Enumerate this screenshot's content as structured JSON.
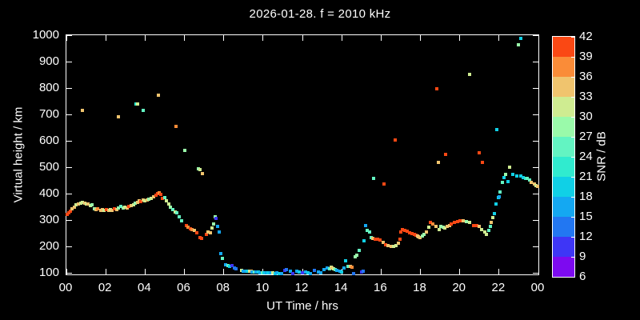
{
  "title": "2026-01-28. f = 2010 kHz",
  "axes": {
    "x": {
      "label": "UT Time / hrs",
      "tick_values": [
        0,
        2,
        4,
        6,
        8,
        10,
        12,
        14,
        16,
        18,
        20,
        22,
        24
      ],
      "tick_labels": [
        "00",
        "02",
        "04",
        "06",
        "08",
        "10",
        "12",
        "14",
        "16",
        "18",
        "20",
        "22",
        "00"
      ],
      "min": 0,
      "max": 24
    },
    "y": {
      "label": "Virtual height / km",
      "tick_values": [
        100,
        200,
        300,
        400,
        500,
        600,
        700,
        800,
        900,
        1000
      ],
      "min": 91,
      "max": 1003
    }
  },
  "colorbar": {
    "label": "SNR / dB",
    "tick_values": [
      6,
      9,
      12,
      15,
      18,
      21,
      24,
      27,
      30,
      33,
      36,
      39,
      42
    ],
    "min": 6,
    "max": 42,
    "palette_low_to_high": [
      "#7d0af0",
      "#3e36f6",
      "#2277f2",
      "#14a8f2",
      "#10d0e6",
      "#30ebcf",
      "#63f4c2",
      "#9afaaa",
      "#cfec91",
      "#f0c46e",
      "#fa8c38",
      "#fa4814",
      "#f50400"
    ]
  },
  "chart_data": {
    "type": "scatter",
    "title": "2026-01-28. f = 2010 kHz",
    "xlabel": "UT Time / hrs",
    "ylabel": "Virtual height / km",
    "color_label": "SNR / dB",
    "xlim": [
      0,
      24
    ],
    "ylim": [
      91,
      1003
    ],
    "color_lim": [
      6,
      42
    ],
    "grid": false,
    "legend": "colorbar-right",
    "points_t_km_snr": [
      [
        0.05,
        320,
        40
      ],
      [
        0.12,
        327,
        40
      ],
      [
        0.2,
        334,
        40
      ],
      [
        0.3,
        342,
        34
      ],
      [
        0.4,
        348,
        34
      ],
      [
        0.5,
        358,
        31
      ],
      [
        0.62,
        361,
        34
      ],
      [
        0.72,
        364,
        31
      ],
      [
        0.83,
        715,
        34
      ],
      [
        0.83,
        367,
        31
      ],
      [
        0.92,
        364,
        34
      ],
      [
        1.0,
        361,
        31
      ],
      [
        1.1,
        361,
        34
      ],
      [
        1.2,
        355,
        31
      ],
      [
        1.3,
        358,
        28
      ],
      [
        1.42,
        342,
        28
      ],
      [
        1.5,
        339,
        34
      ],
      [
        1.6,
        342,
        37
      ],
      [
        1.73,
        336,
        34
      ],
      [
        1.82,
        339,
        34
      ],
      [
        1.92,
        336,
        31
      ],
      [
        2.04,
        339,
        40
      ],
      [
        2.14,
        336,
        34
      ],
      [
        2.24,
        339,
        31
      ],
      [
        2.33,
        336,
        34
      ],
      [
        2.44,
        342,
        40
      ],
      [
        2.55,
        339,
        34
      ],
      [
        2.64,
        345,
        28
      ],
      [
        2.65,
        690,
        34
      ],
      [
        2.77,
        352,
        25
      ],
      [
        2.88,
        345,
        28
      ],
      [
        2.98,
        348,
        31
      ],
      [
        3.1,
        345,
        34
      ],
      [
        3.18,
        352,
        40
      ],
      [
        3.3,
        355,
        34
      ],
      [
        3.42,
        358,
        31
      ],
      [
        3.5,
        364,
        28
      ],
      [
        3.55,
        740,
        22
      ],
      [
        3.6,
        367,
        34
      ],
      [
        3.63,
        738,
        31
      ],
      [
        3.72,
        373,
        34
      ],
      [
        3.8,
        370,
        40
      ],
      [
        3.9,
        715,
        25
      ],
      [
        3.9,
        376,
        34
      ],
      [
        4.0,
        373,
        31
      ],
      [
        4.1,
        376,
        34
      ],
      [
        4.2,
        379,
        28
      ],
      [
        4.3,
        382,
        31
      ],
      [
        4.45,
        388,
        34
      ],
      [
        4.55,
        394,
        40
      ],
      [
        4.62,
        400,
        40
      ],
      [
        4.68,
        773,
        34
      ],
      [
        4.72,
        403,
        37
      ],
      [
        4.8,
        397,
        40
      ],
      [
        4.88,
        382,
        40
      ],
      [
        5.0,
        385,
        25
      ],
      [
        5.1,
        373,
        31
      ],
      [
        5.2,
        361,
        31
      ],
      [
        5.3,
        348,
        28
      ],
      [
        5.42,
        339,
        25
      ],
      [
        5.55,
        330,
        31
      ],
      [
        5.58,
        655,
        37
      ],
      [
        5.62,
        327,
        25
      ],
      [
        5.74,
        313,
        25
      ],
      [
        5.86,
        297,
        25
      ],
      [
        6.0,
        565,
        28
      ],
      [
        6.1,
        278,
        40
      ],
      [
        6.2,
        272,
        37
      ],
      [
        6.3,
        266,
        40
      ],
      [
        6.4,
        263,
        37
      ],
      [
        6.5,
        260,
        34
      ],
      [
        6.62,
        252,
        40
      ],
      [
        6.73,
        495,
        28
      ],
      [
        6.78,
        233,
        40
      ],
      [
        6.8,
        490,
        31
      ],
      [
        6.88,
        230,
        40
      ],
      [
        6.9,
        477,
        34
      ],
      [
        7.1,
        246,
        40
      ],
      [
        7.2,
        255,
        34
      ],
      [
        7.32,
        252,
        34
      ],
      [
        7.42,
        270,
        31
      ],
      [
        7.48,
        285,
        28
      ],
      [
        7.55,
        313,
        28
      ],
      [
        7.62,
        306,
        11
      ],
      [
        7.7,
        276,
        17
      ],
      [
        7.76,
        255,
        17
      ],
      [
        7.85,
        172,
        17
      ],
      [
        7.95,
        155,
        25
      ],
      [
        8.1,
        131,
        17
      ],
      [
        8.2,
        127,
        25
      ],
      [
        8.28,
        124,
        20
      ],
      [
        8.4,
        127,
        11
      ],
      [
        8.55,
        118,
        14
      ],
      [
        8.63,
        115,
        14
      ],
      [
        8.9,
        109,
        31
      ],
      [
        9.0,
        106,
        17
      ],
      [
        9.1,
        106,
        17
      ],
      [
        9.2,
        106,
        20
      ],
      [
        9.3,
        106,
        31
      ],
      [
        9.38,
        106,
        34
      ],
      [
        9.45,
        103,
        17
      ],
      [
        9.55,
        103,
        25
      ],
      [
        9.65,
        103,
        17
      ],
      [
        9.76,
        103,
        20
      ],
      [
        9.85,
        101,
        17
      ],
      [
        9.95,
        101,
        25
      ],
      [
        10.05,
        101,
        20
      ],
      [
        10.15,
        101,
        17
      ],
      [
        10.25,
        100,
        20
      ],
      [
        10.37,
        100,
        17
      ],
      [
        10.5,
        100,
        31
      ],
      [
        10.6,
        98,
        20
      ],
      [
        10.7,
        100,
        17
      ],
      [
        10.82,
        97,
        20
      ],
      [
        10.95,
        97,
        17
      ],
      [
        11.1,
        109,
        11
      ],
      [
        11.2,
        112,
        14
      ],
      [
        11.38,
        106,
        17
      ],
      [
        11.5,
        97,
        11
      ],
      [
        11.7,
        106,
        17
      ],
      [
        11.85,
        103,
        20
      ],
      [
        12.0,
        100,
        11
      ],
      [
        12.18,
        103,
        17
      ],
      [
        12.3,
        100,
        20
      ],
      [
        12.42,
        97,
        17
      ],
      [
        12.6,
        109,
        14
      ],
      [
        12.8,
        103,
        17
      ],
      [
        12.95,
        100,
        17
      ],
      [
        13.1,
        112,
        17
      ],
      [
        13.28,
        118,
        17
      ],
      [
        13.37,
        115,
        25
      ],
      [
        13.45,
        121,
        31
      ],
      [
        13.52,
        118,
        34
      ],
      [
        13.58,
        115,
        31
      ],
      [
        13.65,
        112,
        25
      ],
      [
        13.75,
        109,
        17
      ],
      [
        13.9,
        106,
        17
      ],
      [
        14.0,
        103,
        20
      ],
      [
        14.1,
        118,
        17
      ],
      [
        14.2,
        146,
        20
      ],
      [
        14.32,
        124,
        25
      ],
      [
        14.45,
        124,
        34
      ],
      [
        14.52,
        121,
        37
      ],
      [
        14.6,
        97,
        14
      ],
      [
        14.7,
        161,
        28
      ],
      [
        14.78,
        167,
        28
      ],
      [
        14.9,
        185,
        25
      ],
      [
        15.0,
        103,
        11
      ],
      [
        15.1,
        106,
        14
      ],
      [
        15.15,
        222,
        20
      ],
      [
        15.2,
        280,
        17
      ],
      [
        15.3,
        261,
        25
      ],
      [
        15.4,
        255,
        25
      ],
      [
        15.48,
        233,
        25
      ],
      [
        15.58,
        230,
        34
      ],
      [
        15.6,
        458,
        25
      ],
      [
        15.7,
        227,
        40
      ],
      [
        15.82,
        227,
        40
      ],
      [
        15.95,
        224,
        40
      ],
      [
        16.1,
        215,
        34
      ],
      [
        16.15,
        436,
        40
      ],
      [
        16.22,
        206,
        40
      ],
      [
        16.36,
        203,
        34
      ],
      [
        16.5,
        200,
        34
      ],
      [
        16.63,
        200,
        31
      ],
      [
        16.72,
        603,
        40
      ],
      [
        16.77,
        203,
        31
      ],
      [
        16.9,
        212,
        34
      ],
      [
        16.95,
        227,
        40
      ],
      [
        17.02,
        255,
        40
      ],
      [
        17.1,
        264,
        40
      ],
      [
        17.22,
        261,
        40
      ],
      [
        17.33,
        258,
        40
      ],
      [
        17.45,
        252,
        40
      ],
      [
        17.58,
        249,
        40
      ],
      [
        17.68,
        246,
        40
      ],
      [
        17.76,
        243,
        40
      ],
      [
        17.84,
        240,
        34
      ],
      [
        17.9,
        237,
        34
      ],
      [
        17.97,
        233,
        34
      ],
      [
        18.1,
        240,
        28
      ],
      [
        18.2,
        246,
        28
      ],
      [
        18.3,
        255,
        34
      ],
      [
        18.42,
        273,
        31
      ],
      [
        18.52,
        291,
        40
      ],
      [
        18.65,
        285,
        37
      ],
      [
        18.78,
        276,
        34
      ],
      [
        18.83,
        797,
        40
      ],
      [
        18.9,
        519,
        34
      ],
      [
        18.95,
        264,
        31
      ],
      [
        19.05,
        276,
        28
      ],
      [
        19.17,
        273,
        28
      ],
      [
        19.25,
        270,
        31
      ],
      [
        19.3,
        548,
        40
      ],
      [
        19.37,
        276,
        34
      ],
      [
        19.48,
        279,
        34
      ],
      [
        19.57,
        285,
        40
      ],
      [
        19.72,
        291,
        40
      ],
      [
        19.9,
        294,
        40
      ],
      [
        20.03,
        297,
        40
      ],
      [
        20.17,
        297,
        34
      ],
      [
        20.32,
        294,
        28
      ],
      [
        20.5,
        851,
        31
      ],
      [
        20.5,
        291,
        31
      ],
      [
        20.72,
        279,
        40
      ],
      [
        20.85,
        279,
        40
      ],
      [
        21.0,
        554,
        40
      ],
      [
        21.0,
        276,
        34
      ],
      [
        21.12,
        264,
        31
      ],
      [
        21.15,
        519,
        40
      ],
      [
        21.27,
        255,
        31
      ],
      [
        21.37,
        246,
        31
      ],
      [
        21.47,
        261,
        25
      ],
      [
        21.55,
        276,
        25
      ],
      [
        21.62,
        291,
        34
      ],
      [
        21.7,
        309,
        31
      ],
      [
        21.78,
        324,
        20
      ],
      [
        21.85,
        361,
        20
      ],
      [
        21.9,
        642,
        20
      ],
      [
        21.95,
        385,
        20
      ],
      [
        22.0,
        388,
        17
      ],
      [
        22.05,
        406,
        25
      ],
      [
        22.17,
        442,
        25
      ],
      [
        22.25,
        460,
        20
      ],
      [
        22.32,
        473,
        28
      ],
      [
        22.45,
        445,
        20
      ],
      [
        22.55,
        500,
        31
      ],
      [
        22.7,
        473,
        20
      ],
      [
        22.9,
        467,
        20
      ],
      [
        23.0,
        963,
        28
      ],
      [
        23.1,
        988,
        20
      ],
      [
        23.1,
        467,
        20
      ],
      [
        23.22,
        460,
        20
      ],
      [
        23.35,
        458,
        22
      ],
      [
        23.45,
        458,
        25
      ],
      [
        23.55,
        451,
        25
      ],
      [
        23.65,
        442,
        34
      ],
      [
        23.78,
        436,
        34
      ],
      [
        23.88,
        430,
        31
      ],
      [
        23.97,
        427,
        34
      ]
    ]
  }
}
